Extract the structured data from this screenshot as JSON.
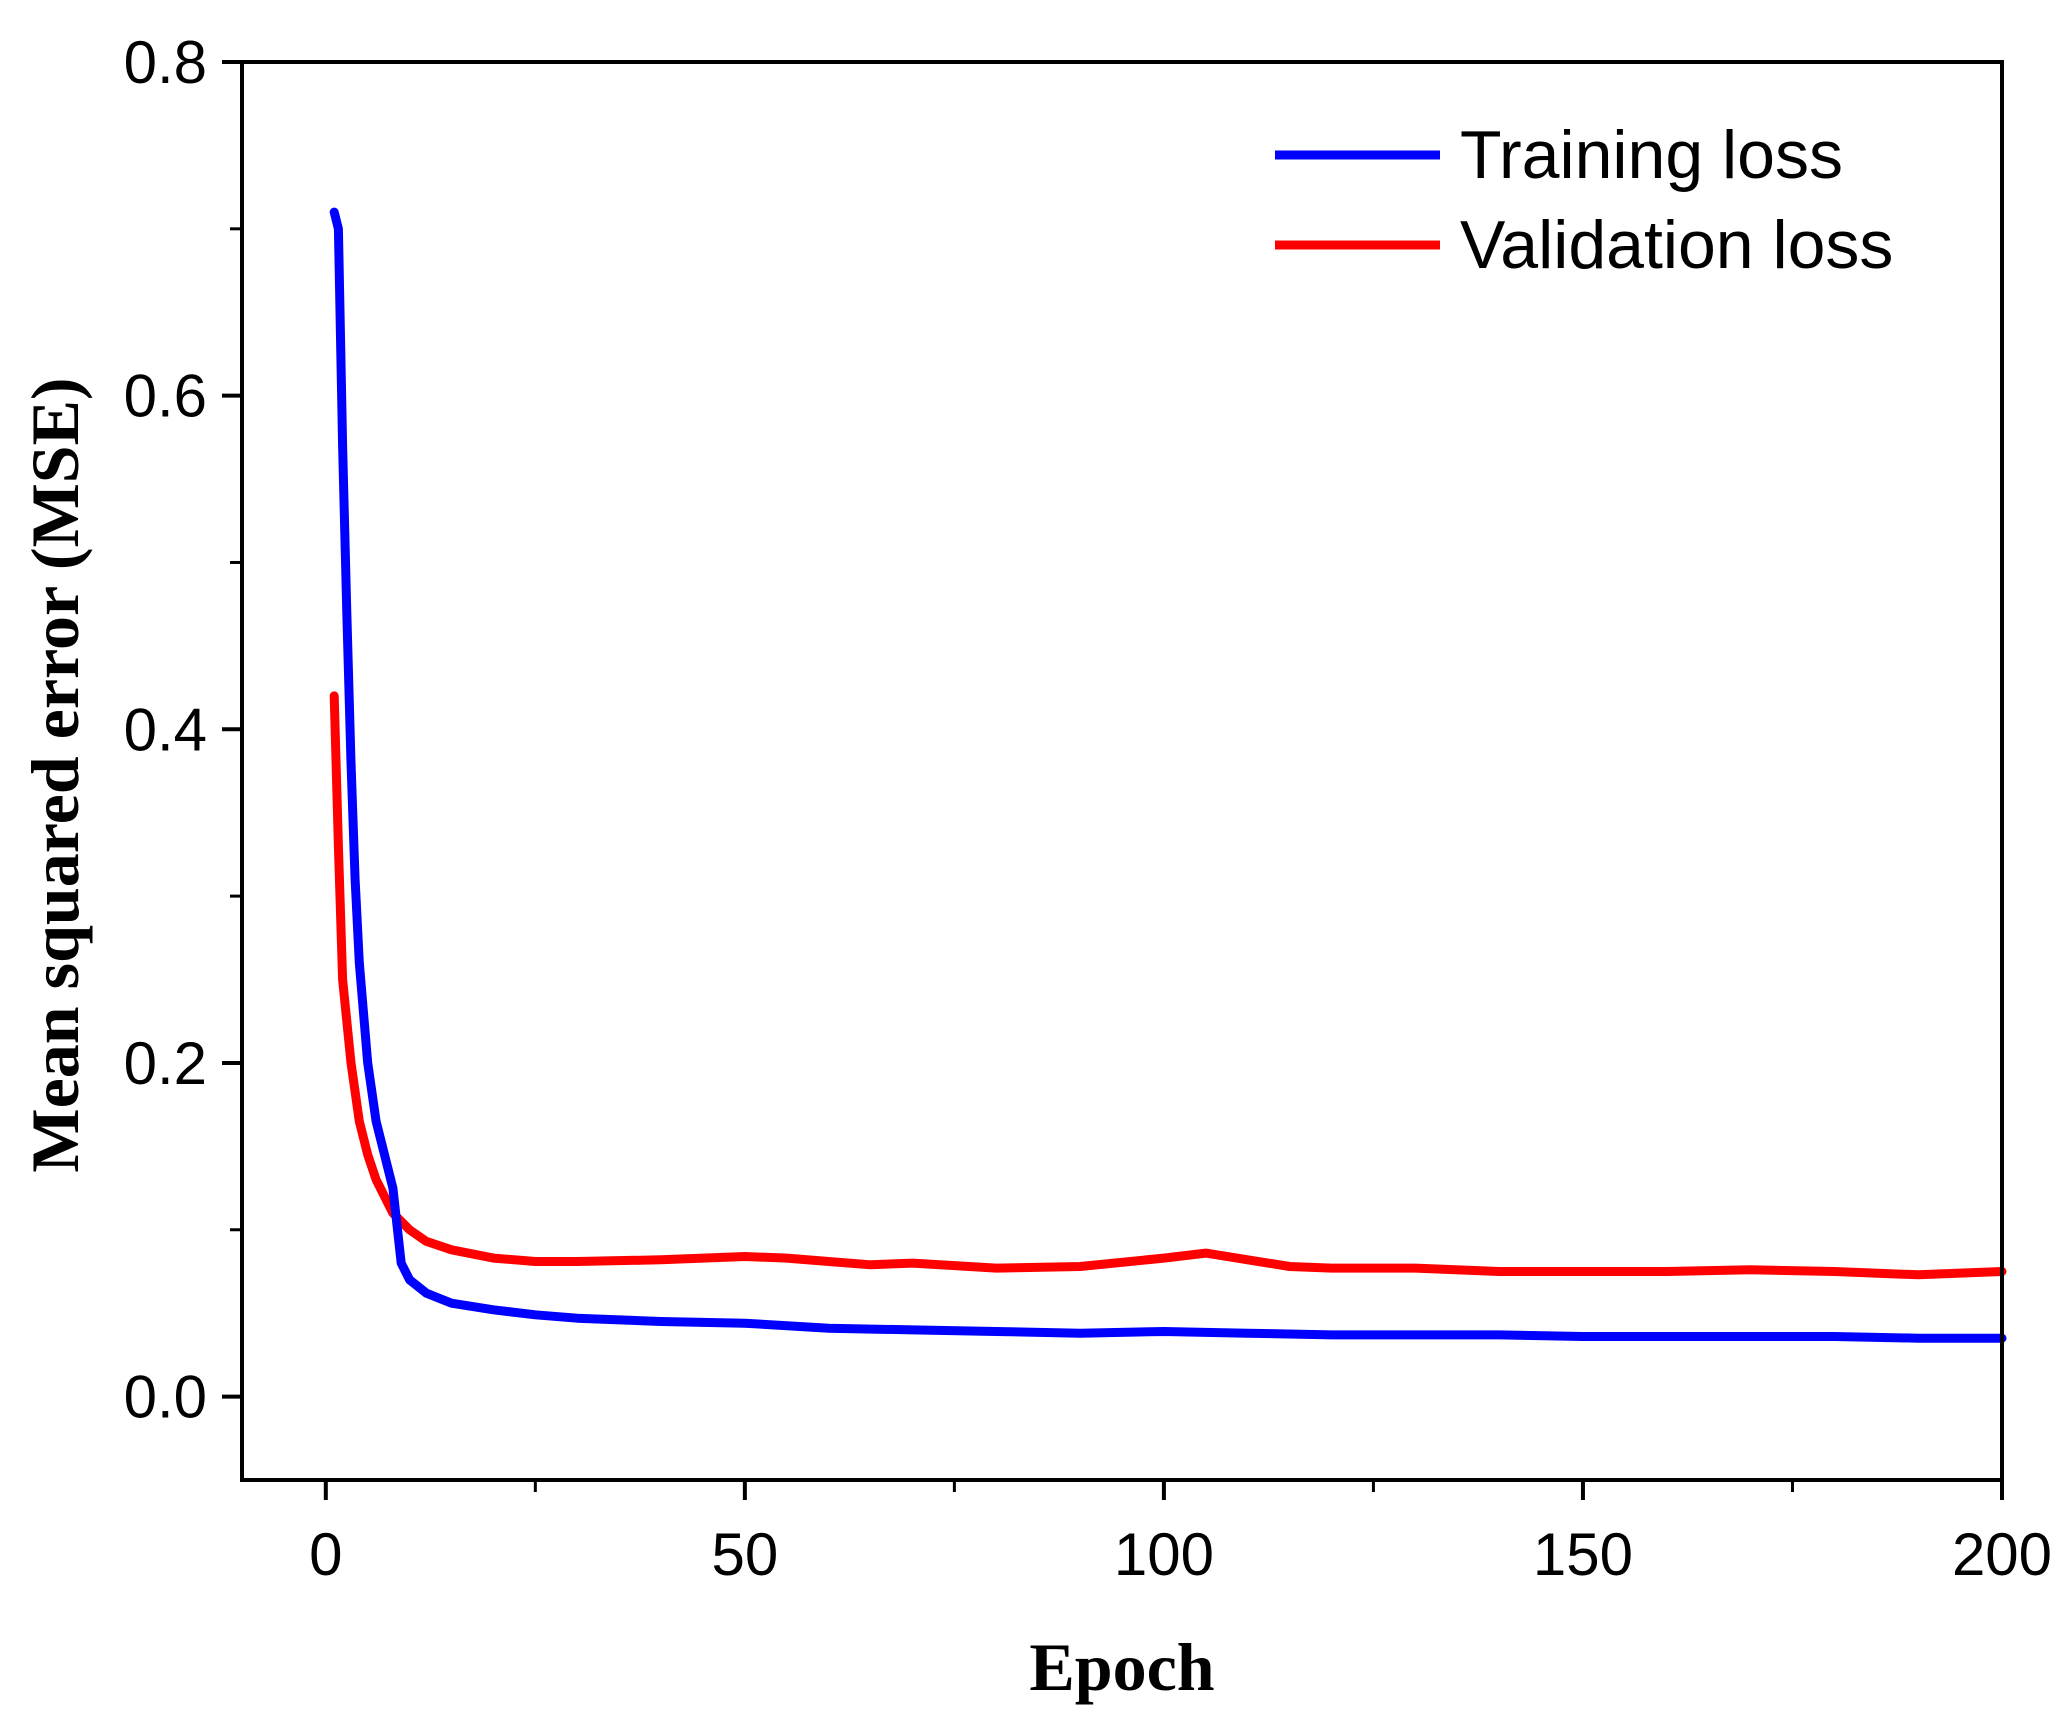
{
  "chart_data": {
    "type": "line",
    "title": "",
    "xlabel": "Epoch",
    "ylabel": "Mean squared error (MSE)",
    "xlim": [
      -10,
      200
    ],
    "ylim": [
      -0.05,
      0.8
    ],
    "xticks": [
      0,
      50,
      100,
      150,
      200
    ],
    "xtick_labels": [
      "0",
      "50",
      "100",
      "150",
      "200"
    ],
    "yticks": [
      0.0,
      0.2,
      0.4,
      0.6,
      0.8
    ],
    "ytick_labels": [
      "0.0",
      "0.2",
      "0.4",
      "0.6",
      "0.8"
    ],
    "grid": false,
    "legend_position": "top-right",
    "series": [
      {
        "name": "Training loss",
        "color": "#0000ff",
        "x": [
          1,
          1.5,
          2,
          2.5,
          3,
          3.5,
          4,
          5,
          6,
          7,
          8,
          9,
          10,
          12,
          15,
          20,
          25,
          30,
          40,
          50,
          60,
          70,
          80,
          90,
          100,
          110,
          120,
          130,
          140,
          150,
          160,
          170,
          180,
          190,
          200
        ],
        "y": [
          0.71,
          0.7,
          0.57,
          0.47,
          0.38,
          0.31,
          0.26,
          0.2,
          0.165,
          0.145,
          0.125,
          0.08,
          0.07,
          0.062,
          0.056,
          0.052,
          0.049,
          0.047,
          0.045,
          0.044,
          0.041,
          0.04,
          0.039,
          0.038,
          0.039,
          0.038,
          0.037,
          0.037,
          0.037,
          0.036,
          0.036,
          0.036,
          0.036,
          0.035,
          0.035
        ]
      },
      {
        "name": "Validation loss",
        "color": "#ff0000",
        "x": [
          1,
          1.5,
          2,
          3,
          4,
          5,
          6,
          7,
          8,
          10,
          12,
          15,
          20,
          25,
          30,
          40,
          50,
          55,
          60,
          65,
          70,
          80,
          90,
          100,
          105,
          110,
          115,
          120,
          130,
          140,
          150,
          160,
          170,
          180,
          190,
          200
        ],
        "y": [
          0.42,
          0.33,
          0.25,
          0.2,
          0.165,
          0.145,
          0.13,
          0.12,
          0.11,
          0.1,
          0.093,
          0.088,
          0.083,
          0.081,
          0.081,
          0.082,
          0.084,
          0.083,
          0.081,
          0.079,
          0.08,
          0.077,
          0.078,
          0.083,
          0.086,
          0.082,
          0.078,
          0.077,
          0.077,
          0.075,
          0.075,
          0.075,
          0.076,
          0.075,
          0.073,
          0.075
        ]
      }
    ]
  }
}
